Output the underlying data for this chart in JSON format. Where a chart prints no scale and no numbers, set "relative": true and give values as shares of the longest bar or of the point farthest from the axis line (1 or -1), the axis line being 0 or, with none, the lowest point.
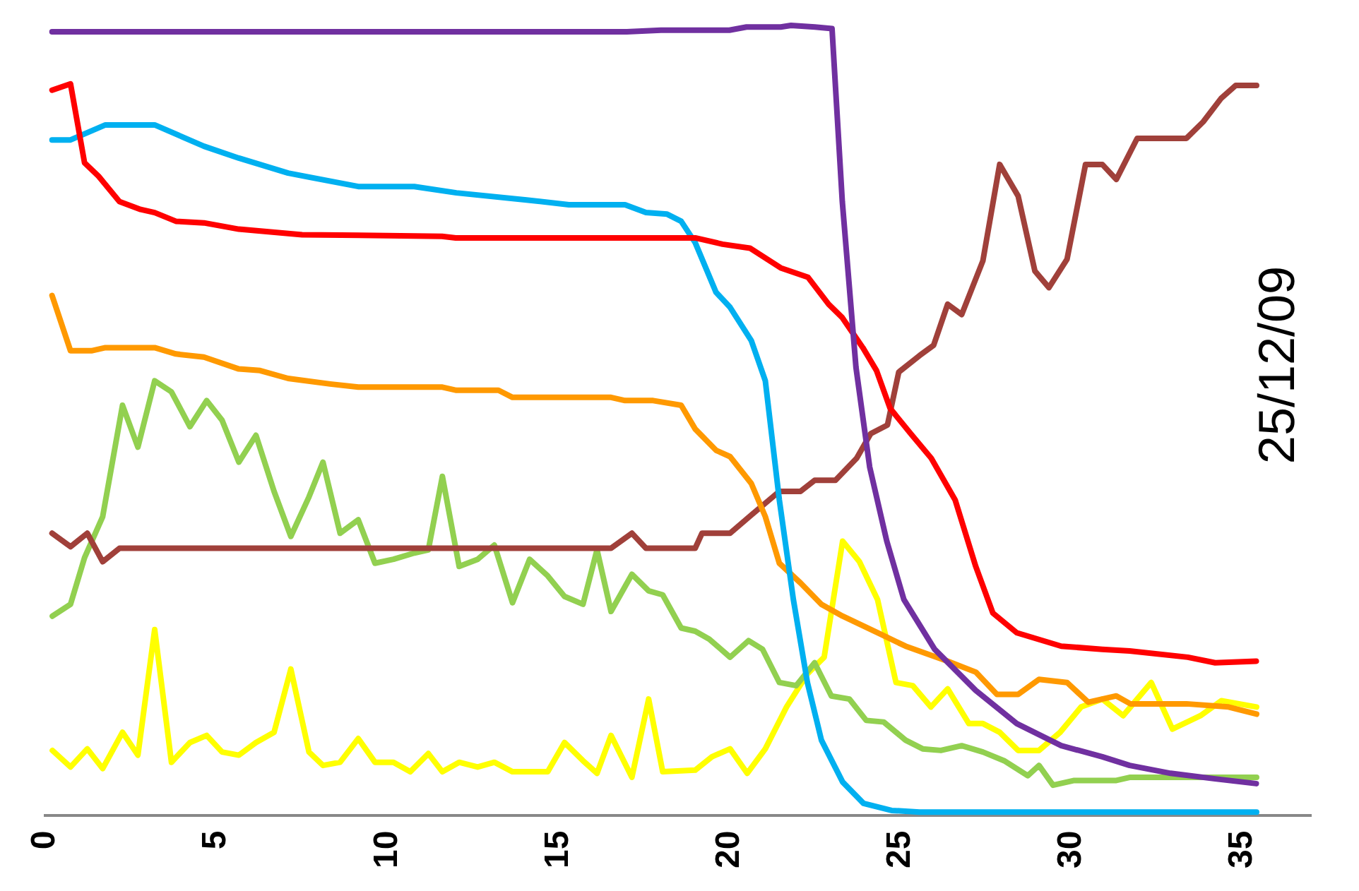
{
  "chart_data": {
    "type": "line",
    "relative": true,
    "xlim": [
      0,
      37
    ],
    "xticks": [
      0,
      5,
      10,
      15,
      20,
      25,
      30,
      35
    ],
    "grid": false,
    "legend": false,
    "marker": "none",
    "line_style": "solid",
    "annotations": [
      "25/12/09"
    ],
    "series": [
      {
        "color": "#7030a0",
        "x": [
          0.2,
          17,
          18,
          20,
          20.5,
          21.5,
          21.8,
          22.5,
          23,
          23.3,
          23.7,
          24.1,
          24.6,
          25.1,
          26,
          27.2,
          28.4,
          29.7,
          30.9,
          31.7,
          32.9,
          34.2,
          35.4
        ],
        "values": [
          0.992,
          0.992,
          0.994,
          0.994,
          0.998,
          0.998,
          1.0,
          0.998,
          0.996,
          0.777,
          0.567,
          0.441,
          0.347,
          0.273,
          0.21,
          0.158,
          0.116,
          0.088,
          0.074,
          0.063,
          0.053,
          0.046,
          0.04
        ]
      },
      {
        "color": "#ff0000",
        "x": [
          0.2,
          0.74,
          1.15,
          1.56,
          2.17,
          2.79,
          3.2,
          3.82,
          4.64,
          5.66,
          7.51,
          11.6,
          12.0,
          19.0,
          19.8,
          20.6,
          21.5,
          22.3,
          22.9,
          23.3,
          23.9,
          24.3,
          24.7,
          25.3,
          25.9,
          26.6,
          27.2,
          27.7,
          28.4,
          29.7,
          30.9,
          31.7,
          33.4,
          34.2,
          35.4
        ],
        "values": [
          0.918,
          0.926,
          0.826,
          0.809,
          0.777,
          0.767,
          0.763,
          0.752,
          0.75,
          0.742,
          0.735,
          0.733,
          0.731,
          0.731,
          0.723,
          0.718,
          0.693,
          0.681,
          0.647,
          0.63,
          0.592,
          0.563,
          0.515,
          0.483,
          0.452,
          0.399,
          0.315,
          0.256,
          0.231,
          0.214,
          0.21,
          0.208,
          0.2,
          0.193,
          0.195
        ]
      },
      {
        "color": "#00b0f0",
        "x": [
          0.2,
          0.74,
          1.76,
          3.2,
          4.64,
          5.66,
          7.1,
          9.15,
          10.79,
          12.02,
          14.07,
          15.31,
          16.95,
          17.56,
          18.18,
          18.59,
          19.0,
          19.61,
          20.02,
          20.64,
          21.05,
          21.46,
          21.87,
          22.28,
          22.69,
          23.31,
          23.92,
          24.74,
          25.56,
          35.41
        ],
        "values": [
          0.855,
          0.855,
          0.874,
          0.874,
          0.847,
          0.832,
          0.813,
          0.796,
          0.796,
          0.788,
          0.779,
          0.773,
          0.773,
          0.763,
          0.761,
          0.752,
          0.725,
          0.662,
          0.643,
          0.601,
          0.55,
          0.399,
          0.273,
          0.168,
          0.095,
          0.042,
          0.015,
          0.006,
          0.004,
          0.004
        ]
      },
      {
        "color": "#ff9900",
        "x": [
          0.2,
          0.74,
          1.35,
          1.76,
          3.2,
          3.82,
          4.64,
          5.66,
          6.28,
          7.1,
          8.33,
          9.15,
          11.61,
          12.02,
          13.25,
          13.66,
          16.54,
          16.95,
          17.77,
          18.59,
          19.0,
          19.61,
          20.02,
          20.64,
          21.05,
          21.46,
          22.08,
          22.69,
          23.31,
          24.33,
          25.15,
          26.38,
          27.21,
          27.82,
          28.44,
          29.05,
          29.87,
          30.49,
          31.31,
          31.72,
          33.36,
          34.59,
          35.41
        ],
        "values": [
          0.658,
          0.588,
          0.588,
          0.592,
          0.592,
          0.584,
          0.58,
          0.565,
          0.563,
          0.553,
          0.546,
          0.542,
          0.542,
          0.538,
          0.538,
          0.529,
          0.529,
          0.525,
          0.525,
          0.519,
          0.489,
          0.462,
          0.454,
          0.42,
          0.378,
          0.319,
          0.294,
          0.267,
          0.252,
          0.231,
          0.214,
          0.195,
          0.181,
          0.153,
          0.153,
          0.172,
          0.168,
          0.143,
          0.151,
          0.141,
          0.141,
          0.137,
          0.128
        ]
      },
      {
        "color": "#a0403a",
        "x": [
          0.2,
          0.74,
          1.23,
          1.68,
          2.17,
          16.54,
          17.15,
          17.56,
          19.0,
          19.2,
          20.02,
          20.64,
          21.46,
          22.08,
          22.49,
          23.1,
          23.72,
          24.13,
          24.62,
          24.95,
          25.56,
          25.97,
          26.38,
          26.79,
          27.41,
          27.9,
          28.44,
          28.93,
          29.34,
          29.87,
          30.41,
          30.9,
          31.31,
          31.92,
          33.36,
          33.85,
          34.38,
          34.8,
          35.41
        ],
        "values": [
          0.357,
          0.34,
          0.357,
          0.321,
          0.338,
          0.338,
          0.357,
          0.338,
          0.338,
          0.357,
          0.357,
          0.38,
          0.41,
          0.41,
          0.424,
          0.424,
          0.452,
          0.483,
          0.494,
          0.561,
          0.582,
          0.595,
          0.647,
          0.634,
          0.702,
          0.824,
          0.784,
          0.689,
          0.668,
          0.704,
          0.824,
          0.824,
          0.805,
          0.857,
          0.857,
          0.878,
          0.908,
          0.924,
          0.924
        ]
      },
      {
        "color": "#92d050",
        "x": [
          0.21,
          0.74,
          1.15,
          1.68,
          2.26,
          2.71,
          3.2,
          3.69,
          4.23,
          4.72,
          5.17,
          5.66,
          6.16,
          6.69,
          7.18,
          7.71,
          8.12,
          8.62,
          9.15,
          9.64,
          10.18,
          10.79,
          11.2,
          11.61,
          12.1,
          12.64,
          13.13,
          13.66,
          14.16,
          14.69,
          15.18,
          15.72,
          16.13,
          16.54,
          17.15,
          17.64,
          18.05,
          18.59,
          19.0,
          19.41,
          20.02,
          20.56,
          20.97,
          21.46,
          21.95,
          22.49,
          22.98,
          23.51,
          24.0,
          24.51,
          25.15,
          25.65,
          26.18,
          26.79,
          27.41,
          28.03,
          28.72,
          29.05,
          29.46,
          30.08,
          31.31,
          31.72,
          35.41
        ],
        "values": [
          0.252,
          0.267,
          0.326,
          0.378,
          0.519,
          0.466,
          0.55,
          0.536,
          0.492,
          0.525,
          0.5,
          0.447,
          0.481,
          0.41,
          0.353,
          0.403,
          0.447,
          0.357,
          0.374,
          0.319,
          0.324,
          0.332,
          0.336,
          0.429,
          0.315,
          0.324,
          0.342,
          0.269,
          0.324,
          0.303,
          0.277,
          0.267,
          0.336,
          0.258,
          0.305,
          0.284,
          0.279,
          0.237,
          0.233,
          0.223,
          0.2,
          0.221,
          0.21,
          0.168,
          0.164,
          0.193,
          0.151,
          0.147,
          0.12,
          0.118,
          0.095,
          0.084,
          0.082,
          0.088,
          0.08,
          0.069,
          0.05,
          0.063,
          0.038,
          0.044,
          0.044,
          0.048,
          0.048
        ]
      },
      {
        "color": "#ffff00",
        "x": [
          0.21,
          0.74,
          1.23,
          1.68,
          2.26,
          2.71,
          3.2,
          3.69,
          4.23,
          4.72,
          5.17,
          5.66,
          6.16,
          6.69,
          7.18,
          7.71,
          8.12,
          8.62,
          9.15,
          9.64,
          10.18,
          10.67,
          11.2,
          11.61,
          12.1,
          12.64,
          13.13,
          13.66,
          14.69,
          15.18,
          15.72,
          16.13,
          16.54,
          17.15,
          17.64,
          18.05,
          19.0,
          19.49,
          20.02,
          20.52,
          21.05,
          21.67,
          22.28,
          22.77,
          23.31,
          23.8,
          24.33,
          24.87,
          25.36,
          25.89,
          26.38,
          27.0,
          27.41,
          27.9,
          28.44,
          29.05,
          29.67,
          30.28,
          30.9,
          31.51,
          32.33,
          32.95,
          33.77,
          34.38,
          35.41
        ],
        "values": [
          0.082,
          0.061,
          0.084,
          0.059,
          0.105,
          0.076,
          0.235,
          0.067,
          0.092,
          0.101,
          0.08,
          0.076,
          0.092,
          0.105,
          0.185,
          0.08,
          0.063,
          0.067,
          0.097,
          0.067,
          0.067,
          0.055,
          0.078,
          0.055,
          0.067,
          0.061,
          0.067,
          0.055,
          0.055,
          0.092,
          0.069,
          0.053,
          0.101,
          0.048,
          0.147,
          0.055,
          0.057,
          0.074,
          0.084,
          0.053,
          0.084,
          0.137,
          0.179,
          0.2,
          0.347,
          0.321,
          0.273,
          0.168,
          0.164,
          0.137,
          0.16,
          0.116,
          0.116,
          0.105,
          0.082,
          0.082,
          0.105,
          0.137,
          0.147,
          0.126,
          0.168,
          0.109,
          0.126,
          0.145,
          0.137
        ]
      }
    ]
  }
}
